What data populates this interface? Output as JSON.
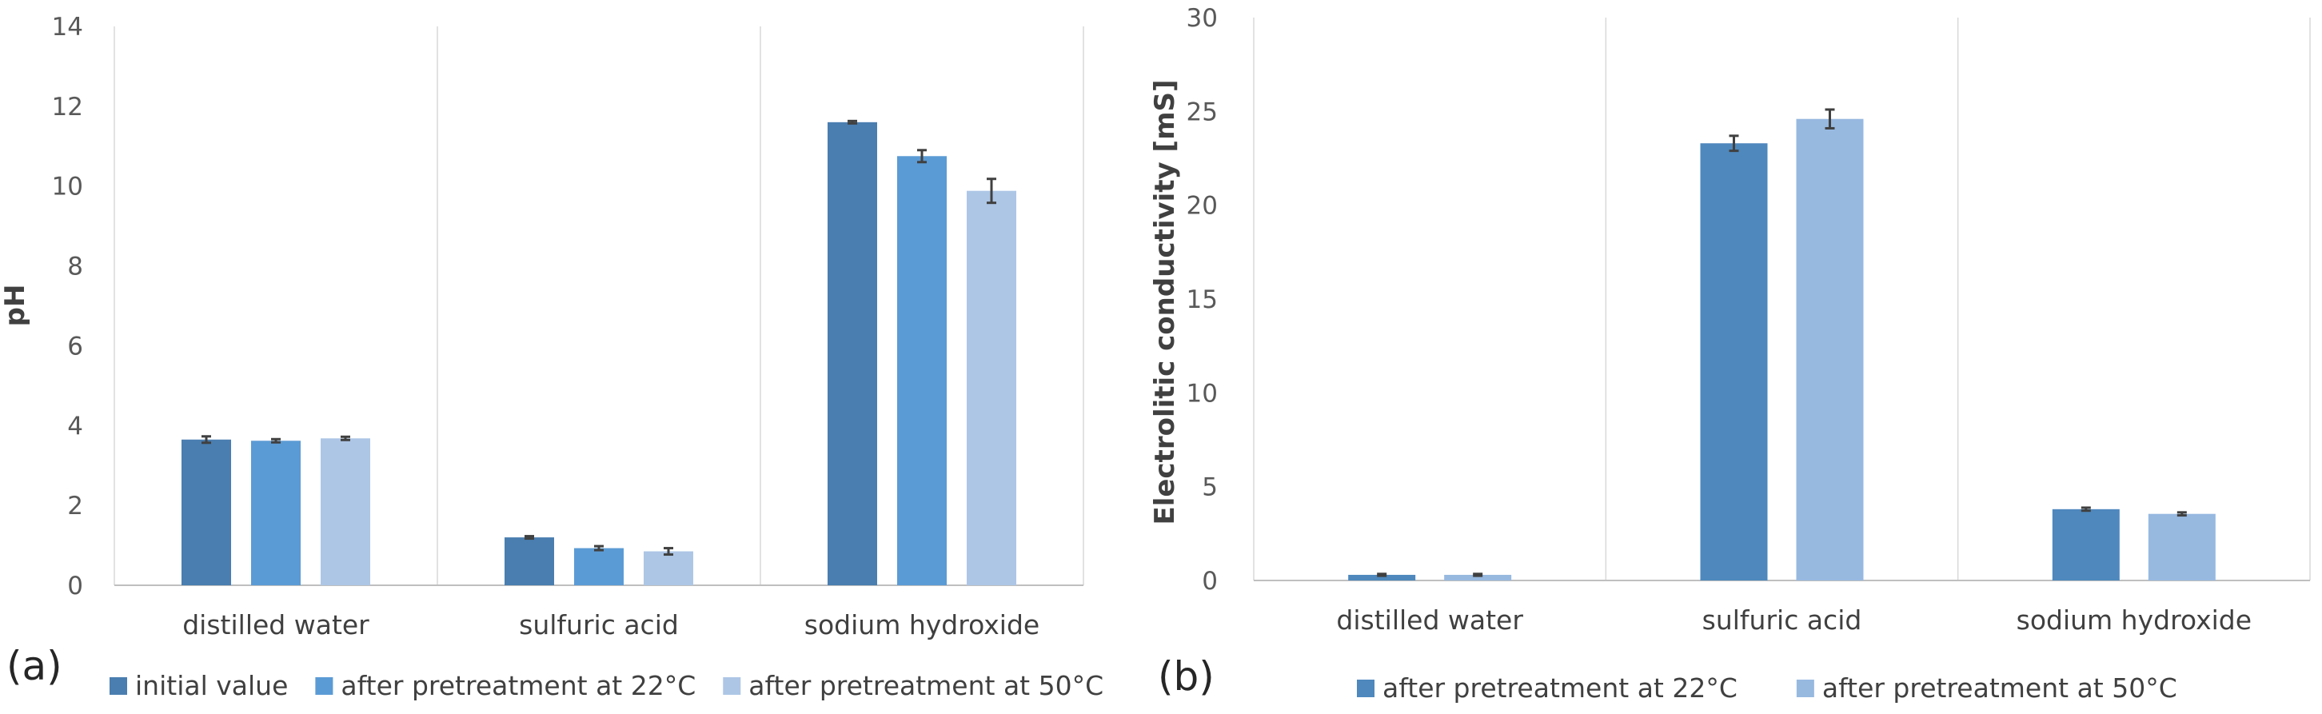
{
  "panels": {
    "a": "(a)",
    "b": "(b)"
  },
  "chart_data": [
    {
      "type": "bar",
      "title": "",
      "xlabel": "",
      "ylabel": "pH",
      "ylim": [
        0,
        14
      ],
      "yticks": [
        0,
        2,
        4,
        6,
        8,
        10,
        12,
        14
      ],
      "grid": "vertical category separators",
      "legend": "bottom",
      "categories": [
        "distilled water",
        "sulfuric acid",
        "sodium hydroxide"
      ],
      "series": [
        {
          "name": "initial value",
          "color": "#4a7eb0",
          "values": [
            3.65,
            1.2,
            11.6
          ],
          "errors": [
            0.08,
            0.03,
            0.03
          ]
        },
        {
          "name": "after pretreatment at 22°C",
          "color": "#5b9bd5",
          "values": [
            3.62,
            0.93,
            10.75
          ],
          "errors": [
            0.04,
            0.05,
            0.15
          ]
        },
        {
          "name": "after pretreatment at 50°C",
          "color": "#adc6e6",
          "values": [
            3.68,
            0.85,
            9.88
          ],
          "errors": [
            0.04,
            0.08,
            0.3
          ]
        }
      ]
    },
    {
      "type": "bar",
      "title": "",
      "xlabel": "",
      "ylabel": "Electrolitic conductivity [mS]",
      "ylim": [
        0,
        30
      ],
      "yticks": [
        0,
        5,
        10,
        15,
        20,
        25,
        30
      ],
      "grid": "vertical category separators",
      "legend": "bottom",
      "categories": [
        "distilled water",
        "sulfuric acid",
        "sodium hydroxide"
      ],
      "series": [
        {
          "name": "after pretreatment at 22°C",
          "color": "#4e88bd",
          "values": [
            0.3,
            23.3,
            3.8
          ],
          "errors": [
            0.05,
            0.4,
            0.08
          ]
        },
        {
          "name": "after pretreatment at 50°C",
          "color": "#97b9e0",
          "values": [
            0.3,
            24.6,
            3.55
          ],
          "errors": [
            0.05,
            0.5,
            0.08
          ]
        }
      ]
    }
  ]
}
